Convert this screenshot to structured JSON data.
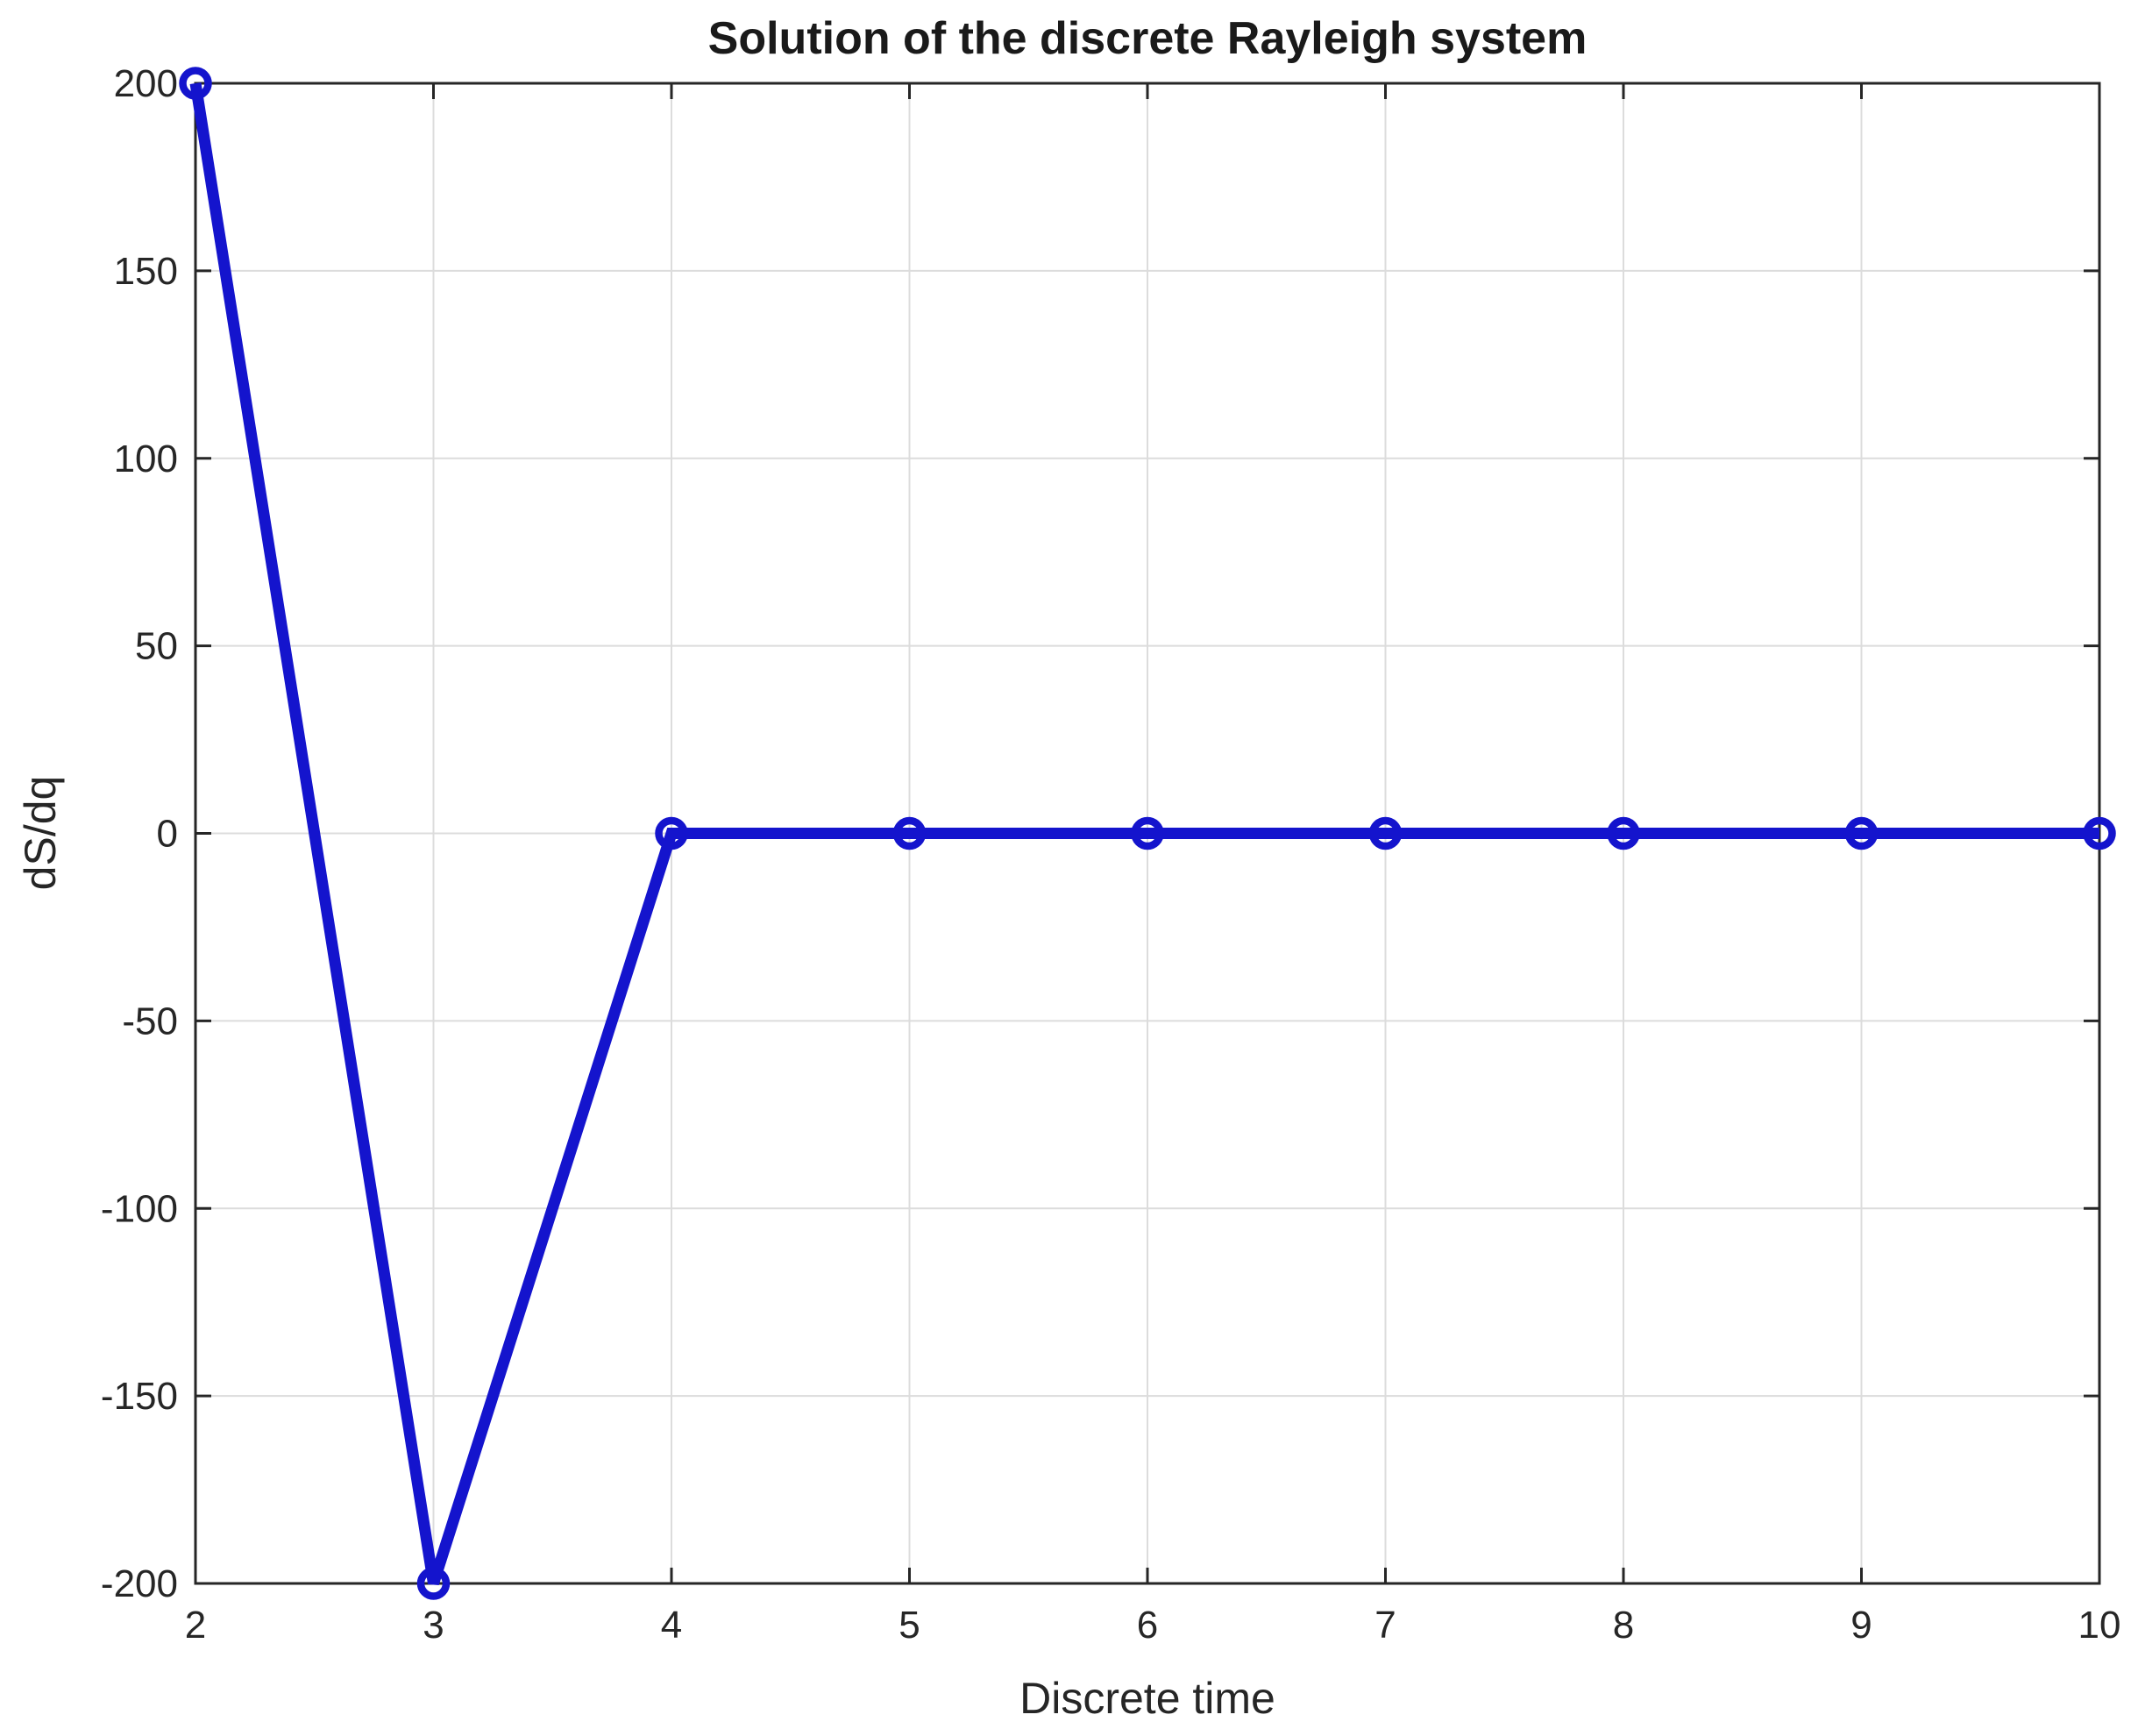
{
  "chart_data": {
    "type": "line",
    "title": "Solution of the discrete Rayleigh system",
    "xlabel": "Discrete time",
    "ylabel": "dS/dq",
    "x": [
      2,
      3,
      4,
      5,
      6,
      7,
      8,
      9,
      10
    ],
    "series": [
      {
        "name": "dS/dq",
        "values": [
          200,
          -200,
          0,
          0,
          0,
          0,
          0,
          0,
          0
        ]
      }
    ],
    "xlim": [
      2,
      10
    ],
    "ylim": [
      -200,
      200
    ],
    "xticks": [
      2,
      3,
      4,
      5,
      6,
      7,
      8,
      9,
      10
    ],
    "yticks": [
      -200,
      -150,
      -100,
      -50,
      0,
      50,
      100,
      150,
      200
    ],
    "xtick_labels": [
      "2",
      "3",
      "4",
      "5",
      "6",
      "7",
      "8",
      "9",
      "10"
    ],
    "ytick_labels": [
      "-200",
      "-150",
      "-100",
      "-50",
      "0",
      "50",
      "100",
      "150",
      "200"
    ],
    "grid": true,
    "legend_position": "none",
    "marker": "open-circle",
    "line_color": "#1414CD",
    "grid_color": "#DCDCDC",
    "axis_color": "#262626",
    "text_color": "#262626",
    "background_color": "#ffffff"
  }
}
